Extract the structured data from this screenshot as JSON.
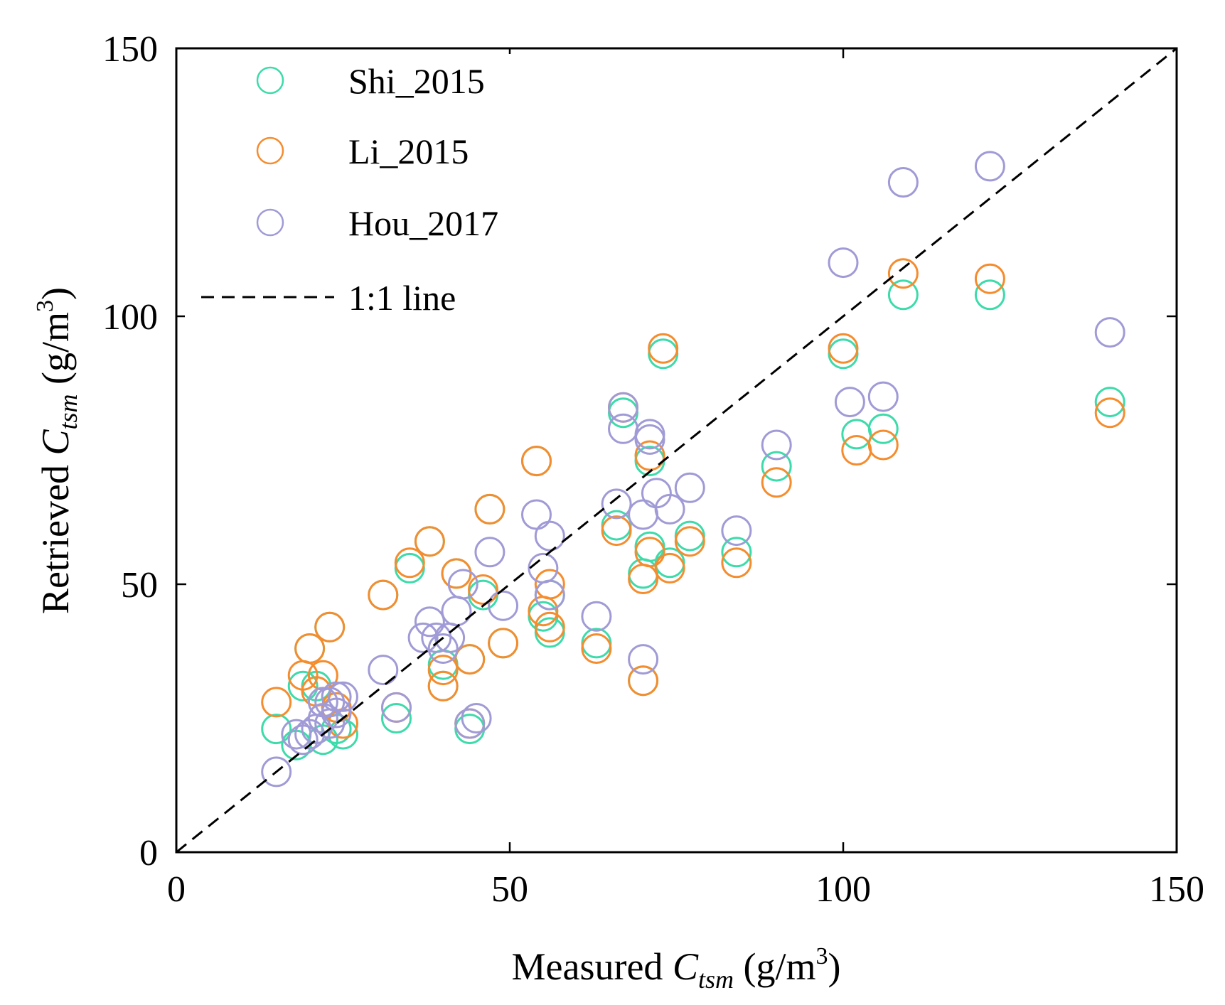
{
  "chart_data": {
    "type": "scatter",
    "title": "",
    "xlabel": {
      "prefix": "Measured ",
      "symbol": "C",
      "subscript": "tsm",
      "unit_open": " (g/m",
      "unit_sup": "3",
      "unit_close": ")"
    },
    "ylabel": {
      "prefix": "Retrieved ",
      "symbol": "C",
      "subscript": "tsm",
      "unit_open": " (g/m",
      "unit_sup": "3",
      "unit_close": ")"
    },
    "xlim": [
      0,
      150
    ],
    "ylim": [
      0,
      150
    ],
    "xticks": [
      0,
      50,
      100,
      150
    ],
    "yticks": [
      0,
      50,
      100,
      150
    ],
    "xtick_labels": [
      "0",
      "50",
      "100",
      "150"
    ],
    "ytick_labels": [
      "0",
      "50",
      "100",
      "150"
    ],
    "grid": false,
    "legend_position": "top-left",
    "legend": [
      "Shi_2015",
      "Li_2015",
      "Hou_2017",
      "1:1 line"
    ],
    "reference_line": {
      "name": "1:1 line",
      "x": [
        0,
        150
      ],
      "y": [
        0,
        150
      ],
      "color": "#000000",
      "style": "dashed"
    },
    "series": [
      {
        "name": "Shi_2015",
        "color": "#3ddbaa",
        "marker": "open-circle",
        "points": [
          [
            15,
            23
          ],
          [
            18,
            20
          ],
          [
            19,
            31
          ],
          [
            20,
            38
          ],
          [
            21,
            31
          ],
          [
            22,
            21
          ],
          [
            23,
            42
          ],
          [
            24,
            23
          ],
          [
            25,
            22
          ],
          [
            31,
            48
          ],
          [
            33,
            25
          ],
          [
            35,
            53
          ],
          [
            38,
            58
          ],
          [
            40,
            35
          ],
          [
            40,
            31
          ],
          [
            42,
            52
          ],
          [
            44,
            36
          ],
          [
            44,
            23
          ],
          [
            46,
            48
          ],
          [
            47,
            64
          ],
          [
            49,
            39
          ],
          [
            54,
            73
          ],
          [
            55,
            44
          ],
          [
            56,
            41
          ],
          [
            56,
            48
          ],
          [
            63,
            39
          ],
          [
            66,
            61
          ],
          [
            67,
            82
          ],
          [
            70,
            52
          ],
          [
            70,
            32
          ],
          [
            71,
            73
          ],
          [
            71,
            57
          ],
          [
            73,
            93
          ],
          [
            74,
            54
          ],
          [
            77,
            59
          ],
          [
            84,
            56
          ],
          [
            90,
            72
          ],
          [
            100,
            93
          ],
          [
            102,
            78
          ],
          [
            106,
            79
          ],
          [
            109,
            104
          ],
          [
            122,
            104
          ],
          [
            140,
            84
          ]
        ]
      },
      {
        "name": "Li_2015",
        "color": "#f58c2e",
        "marker": "open-circle",
        "points": [
          [
            15,
            28
          ],
          [
            19,
            33
          ],
          [
            20,
            38
          ],
          [
            21,
            30
          ],
          [
            22,
            33
          ],
          [
            23,
            42
          ],
          [
            24,
            27
          ],
          [
            25,
            24
          ],
          [
            31,
            48
          ],
          [
            33,
            27
          ],
          [
            35,
            54
          ],
          [
            38,
            58
          ],
          [
            40,
            34
          ],
          [
            40,
            31
          ],
          [
            42,
            52
          ],
          [
            44,
            36
          ],
          [
            44,
            24
          ],
          [
            46,
            49
          ],
          [
            47,
            64
          ],
          [
            49,
            39
          ],
          [
            54,
            73
          ],
          [
            55,
            45
          ],
          [
            56,
            42
          ],
          [
            56,
            50
          ],
          [
            63,
            38
          ],
          [
            66,
            60
          ],
          [
            67,
            83
          ],
          [
            70,
            51
          ],
          [
            70,
            32
          ],
          [
            71,
            74
          ],
          [
            71,
            56
          ],
          [
            73,
            94
          ],
          [
            74,
            53
          ],
          [
            77,
            58
          ],
          [
            84,
            54
          ],
          [
            90,
            69
          ],
          [
            100,
            94
          ],
          [
            102,
            75
          ],
          [
            106,
            76
          ],
          [
            109,
            108
          ],
          [
            122,
            107
          ],
          [
            140,
            82
          ]
        ]
      },
      {
        "name": "Hou_2017",
        "color": "#a09bd6",
        "marker": "open-circle",
        "points": [
          [
            15,
            15
          ],
          [
            18,
            22
          ],
          [
            19,
            21
          ],
          [
            20,
            22
          ],
          [
            21,
            23
          ],
          [
            22,
            28
          ],
          [
            22,
            25
          ],
          [
            23,
            24
          ],
          [
            23,
            28
          ],
          [
            24,
            26
          ],
          [
            24,
            29
          ],
          [
            25,
            29
          ],
          [
            31,
            34
          ],
          [
            33,
            27
          ],
          [
            37,
            40
          ],
          [
            38,
            43
          ],
          [
            39,
            40
          ],
          [
            40,
            38
          ],
          [
            41,
            40
          ],
          [
            42,
            45
          ],
          [
            43,
            50
          ],
          [
            44,
            24
          ],
          [
            45,
            25
          ],
          [
            47,
            56
          ],
          [
            49,
            46
          ],
          [
            54,
            63
          ],
          [
            55,
            53
          ],
          [
            56,
            48
          ],
          [
            56,
            59
          ],
          [
            63,
            44
          ],
          [
            66,
            65
          ],
          [
            67,
            83
          ],
          [
            67,
            79
          ],
          [
            70,
            36
          ],
          [
            70,
            63
          ],
          [
            71,
            77
          ],
          [
            71,
            78
          ],
          [
            72,
            67
          ],
          [
            74,
            64
          ],
          [
            77,
            68
          ],
          [
            84,
            60
          ],
          [
            90,
            76
          ],
          [
            100,
            110
          ],
          [
            101,
            84
          ],
          [
            106,
            85
          ],
          [
            109,
            125
          ],
          [
            122,
            128
          ],
          [
            140,
            97
          ]
        ]
      }
    ]
  }
}
